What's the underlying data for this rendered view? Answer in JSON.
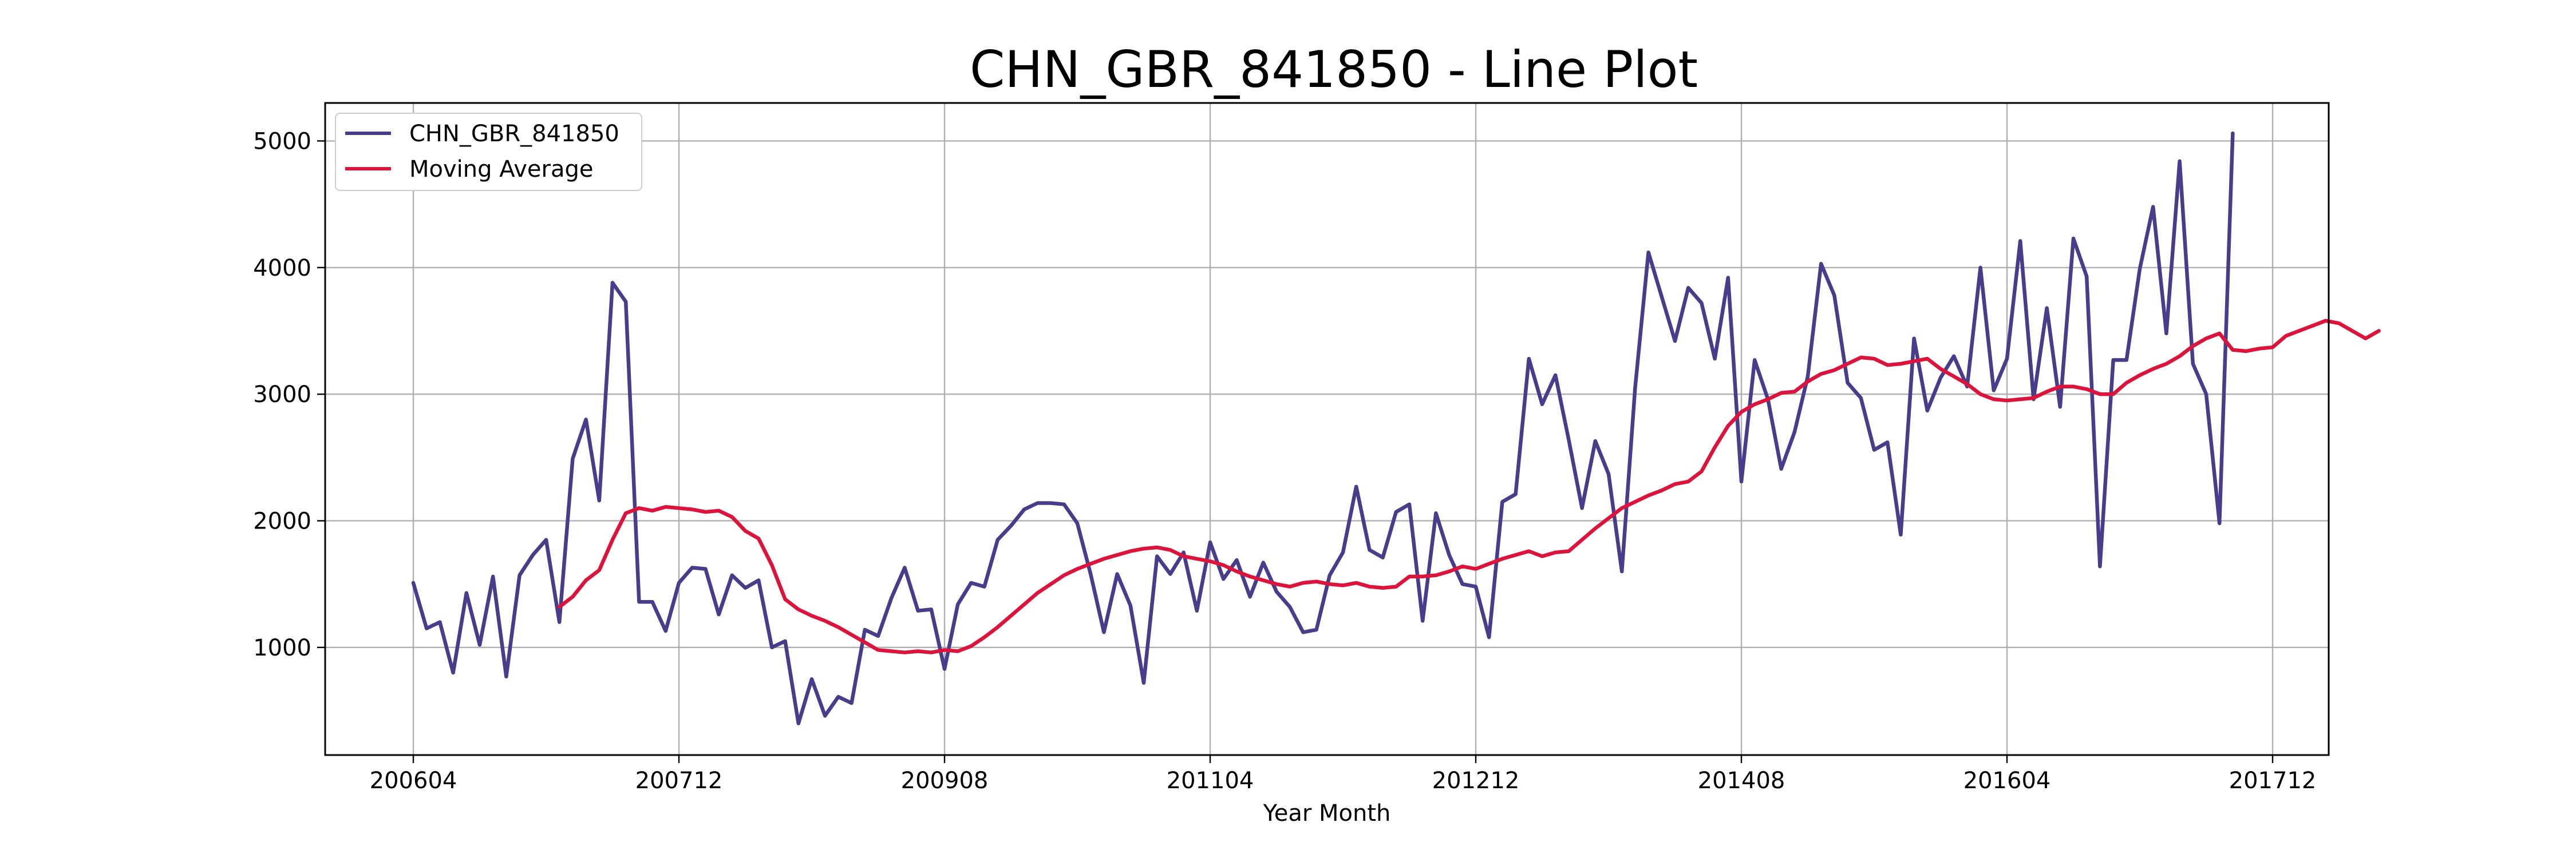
{
  "chart_data": {
    "type": "line",
    "title": "CHN_GBR_841850 - Line Plot",
    "xlabel": "Year Month",
    "ylabel": "",
    "x_tick_labels": [
      "200604",
      "200712",
      "200908",
      "201104",
      "201212",
      "201408",
      "201604",
      "201712"
    ],
    "y_tick_labels": [
      "1000",
      "2000",
      "3000",
      "4000",
      "5000"
    ],
    "ylim": [
      150,
      5300
    ],
    "grid": true,
    "legend_position": "top-left",
    "series": [
      {
        "name": "CHN_GBR_841850",
        "color": "#483d8b",
        "values": [
          1510,
          1150,
          1200,
          800,
          1430,
          1020,
          1560,
          770,
          1570,
          1730,
          1850,
          1200,
          2490,
          2800,
          2160,
          3880,
          3730,
          1360,
          1360,
          1130,
          1510,
          1630,
          1620,
          1260,
          1570,
          1470,
          1530,
          1000,
          1050,
          400,
          750,
          460,
          610,
          560,
          1140,
          1090,
          1390,
          1630,
          1290,
          1300,
          830,
          1340,
          1510,
          1480,
          1850,
          1960,
          2090,
          2140,
          2140,
          2130,
          1980,
          1580,
          1120,
          1580,
          1330,
          720,
          1720,
          1580,
          1750,
          1290,
          1830,
          1540,
          1690,
          1400,
          1670,
          1440,
          1320,
          1120,
          1140,
          1570,
          1750,
          2270,
          1770,
          1710,
          2070,
          2130,
          1210,
          2060,
          1730,
          1500,
          1480,
          1080,
          2150,
          2210,
          3280,
          2920,
          3150,
          2640,
          2100,
          2630,
          2370,
          1600,
          3050,
          4120,
          3770,
          3420,
          3840,
          3720,
          3280,
          3920,
          2310,
          3270,
          2960,
          2410,
          2700,
          3140,
          4030,
          3780,
          3090,
          2970,
          2560,
          2620,
          1890,
          3440,
          2870,
          3130,
          3300,
          3060,
          4000,
          3030,
          3280,
          4210,
          2960,
          3680,
          2900,
          4230,
          3930,
          1640,
          3270,
          3270,
          3990,
          4480,
          3480,
          4840,
          3240,
          3000,
          1980,
          5060
        ]
      },
      {
        "name": "Moving Average",
        "color": "#dc143c",
        "start_index": 11,
        "values": [
          1320,
          1400,
          1530,
          1610,
          1850,
          2060,
          2100,
          2080,
          2110,
          2100,
          2090,
          2070,
          2080,
          2030,
          1920,
          1860,
          1650,
          1380,
          1300,
          1250,
          1210,
          1160,
          1100,
          1040,
          980,
          970,
          960,
          970,
          960,
          980,
          970,
          1010,
          1080,
          1160,
          1250,
          1340,
          1430,
          1500,
          1570,
          1620,
          1660,
          1700,
          1730,
          1760,
          1780,
          1790,
          1770,
          1720,
          1700,
          1680,
          1650,
          1600,
          1560,
          1530,
          1500,
          1480,
          1510,
          1520,
          1500,
          1490,
          1510,
          1480,
          1470,
          1480,
          1560,
          1560,
          1570,
          1600,
          1640,
          1620,
          1660,
          1700,
          1730,
          1760,
          1720,
          1750,
          1760,
          1850,
          1940,
          2020,
          2100,
          2150,
          2200,
          2240,
          2290,
          2310,
          2390,
          2580,
          2750,
          2860,
          2920,
          2960,
          3010,
          3020,
          3100,
          3160,
          3190,
          3240,
          3290,
          3280,
          3230,
          3240,
          3260,
          3280,
          3200,
          3140,
          3080,
          3000,
          2960,
          2950,
          2960,
          2970,
          3020,
          3060,
          3060,
          3040,
          3000,
          3000,
          3090,
          3150,
          3200,
          3240,
          3300,
          3380,
          3440,
          3480,
          3350,
          3340,
          3360,
          3370,
          3460,
          3500,
          3540,
          3580,
          3560,
          3500,
          3440,
          3500
        ]
      }
    ]
  }
}
